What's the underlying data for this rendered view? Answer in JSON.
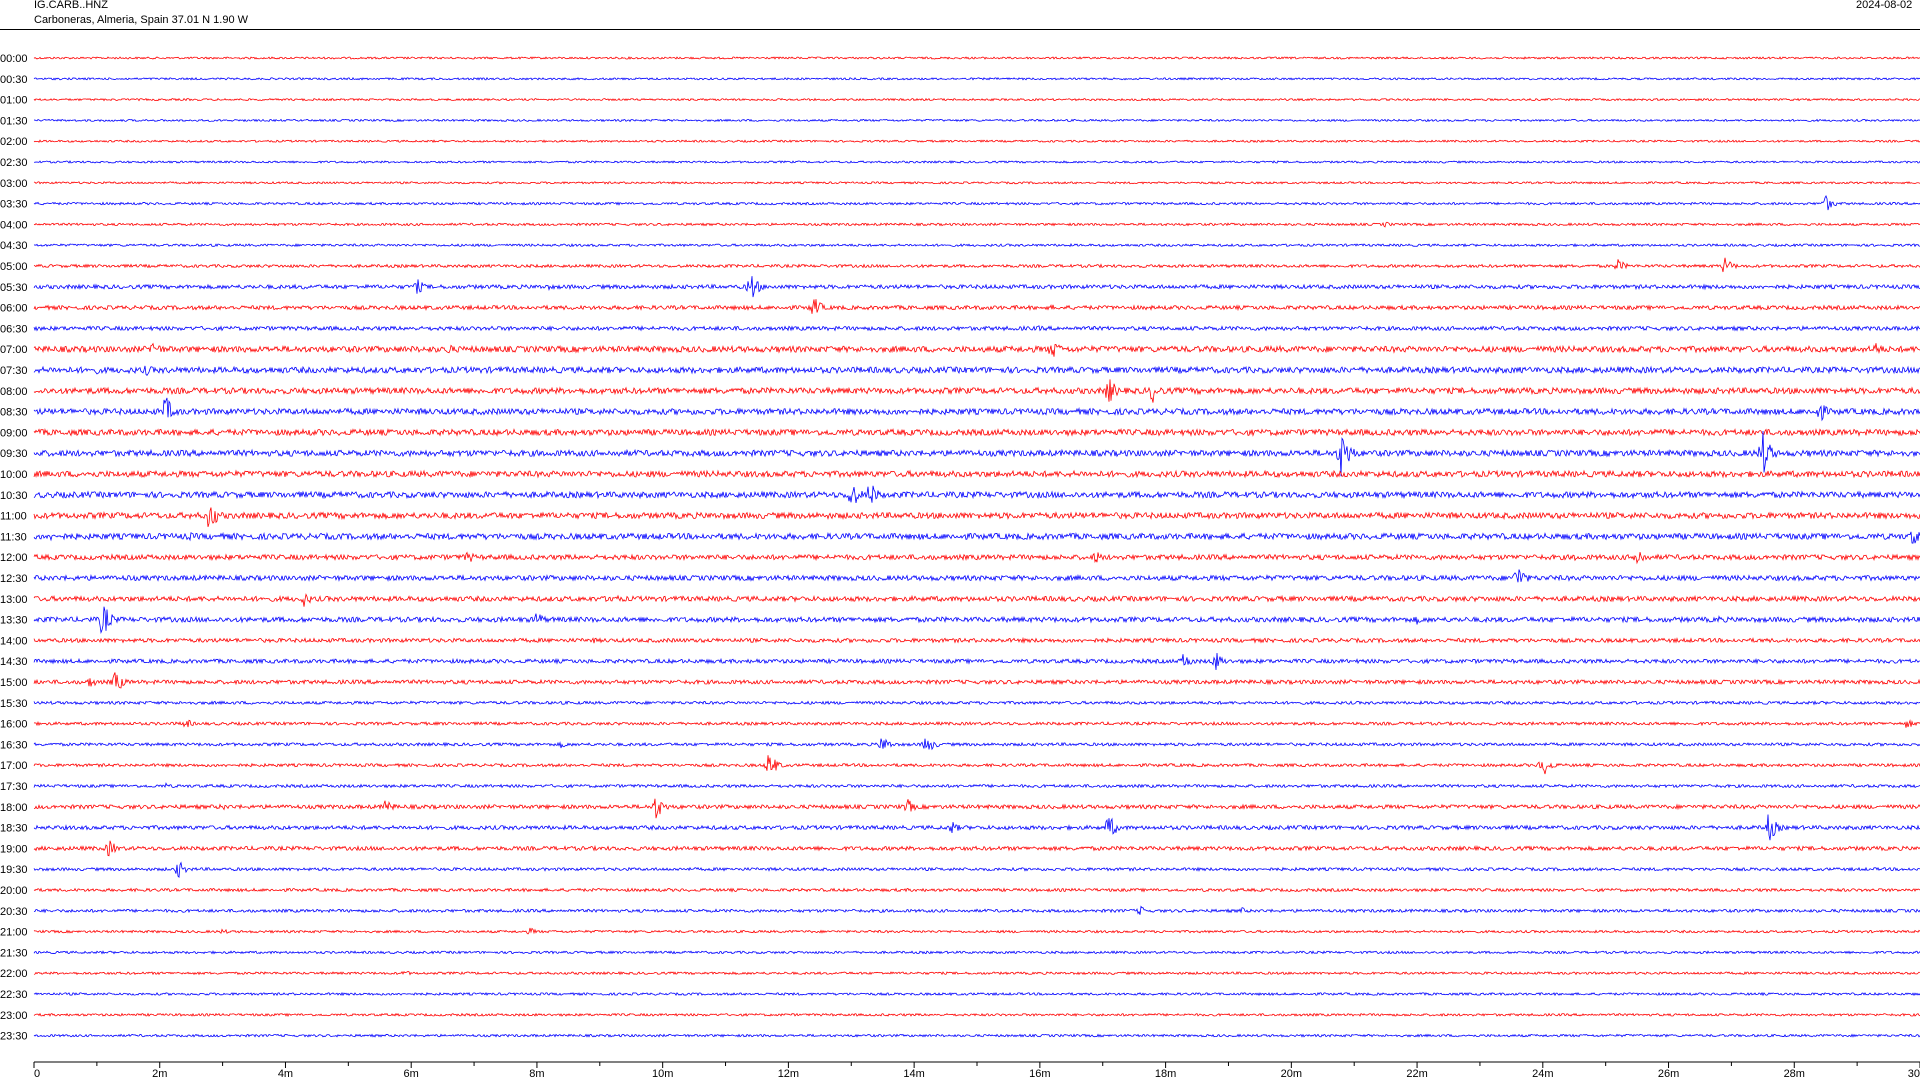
{
  "header": {
    "station": "IG.CARB..HNZ",
    "location": "Carboneras, Almeria, Spain  37.01 N 1.90 W",
    "date": "2024-08-02"
  },
  "chart_data": {
    "type": "line",
    "title": "",
    "xlabel": "",
    "ylabel": "",
    "colors": [
      "#ff0000",
      "#0000ff"
    ],
    "row_labels": [
      "00:00",
      "00:30",
      "01:00",
      "01:30",
      "02:00",
      "02:30",
      "03:00",
      "03:30",
      "04:00",
      "04:30",
      "05:00",
      "05:30",
      "06:00",
      "06:30",
      "07:00",
      "07:30",
      "08:00",
      "08:30",
      "09:00",
      "09:30",
      "10:00",
      "10:30",
      "11:00",
      "11:30",
      "12:00",
      "12:30",
      "13:00",
      "13:30",
      "14:00",
      "14:30",
      "15:00",
      "15:30",
      "16:00",
      "16:30",
      "17:00",
      "17:30",
      "18:00",
      "18:30",
      "19:00",
      "19:30",
      "20:00",
      "20:30",
      "21:00",
      "21:30",
      "22:00",
      "22:30",
      "23:00",
      "23:30"
    ],
    "xlim": [
      0,
      30
    ],
    "x_ticks": [
      "0",
      "2m",
      "4m",
      "6m",
      "8m",
      "10m",
      "12m",
      "14m",
      "16m",
      "18m",
      "20m",
      "22m",
      "24m",
      "26m",
      "28m",
      "30"
    ],
    "x_tick_values": [
      0,
      2,
      4,
      6,
      8,
      10,
      12,
      14,
      16,
      18,
      20,
      22,
      24,
      26,
      28,
      30
    ],
    "noise_level": [
      1,
      1,
      1,
      1,
      1,
      1,
      1,
      1.2,
      1.2,
      1.2,
      1.5,
      2,
      2,
      2,
      3,
      3,
      3,
      3,
      3,
      3,
      3,
      3,
      3,
      3,
      2.5,
      2.5,
      2.5,
      2.5,
      2,
      2,
      2,
      1.5,
      1.5,
      1.5,
      1.5,
      1.5,
      2,
      2,
      2,
      1.5,
      1.5,
      1.5,
      1.2,
      1.2,
      1.2,
      1.2,
      1.2,
      1.2
    ],
    "events": [
      {
        "row": 7,
        "t": 28.5,
        "amp": 9
      },
      {
        "row": 8,
        "t": 21.5,
        "amp": 3
      },
      {
        "row": 10,
        "t": 25.2,
        "amp": 7
      },
      {
        "row": 10,
        "t": 26.9,
        "amp": 9
      },
      {
        "row": 11,
        "t": 4.3,
        "amp": 3
      },
      {
        "row": 11,
        "t": 6.1,
        "amp": 8
      },
      {
        "row": 11,
        "t": 8.2,
        "amp": 3
      },
      {
        "row": 11,
        "t": 11.4,
        "amp": 15
      },
      {
        "row": 12,
        "t": 12.4,
        "amp": 12
      },
      {
        "row": 12,
        "t": 16.2,
        "amp": 3
      },
      {
        "row": 13,
        "t": 7.3,
        "amp": 3
      },
      {
        "row": 13,
        "t": 16.0,
        "amp": 3
      },
      {
        "row": 14,
        "t": 1.9,
        "amp": 10
      },
      {
        "row": 14,
        "t": 6.6,
        "amp": 6
      },
      {
        "row": 14,
        "t": 16.2,
        "amp": 11
      },
      {
        "row": 14,
        "t": 29.3,
        "amp": 8
      },
      {
        "row": 15,
        "t": 1.0,
        "amp": 4
      },
      {
        "row": 15,
        "t": 1.8,
        "amp": 6
      },
      {
        "row": 15,
        "t": 3.5,
        "amp": 4
      },
      {
        "row": 16,
        "t": 17.1,
        "amp": 14
      },
      {
        "row": 16,
        "t": 17.8,
        "amp": 12
      },
      {
        "row": 16,
        "t": 0.9,
        "amp": 4
      },
      {
        "row": 17,
        "t": 2.1,
        "amp": 16
      },
      {
        "row": 17,
        "t": 28.4,
        "amp": 12
      },
      {
        "row": 18,
        "t": 6.0,
        "amp": 3
      },
      {
        "row": 18,
        "t": 13.0,
        "amp": 3
      },
      {
        "row": 19,
        "t": 20.8,
        "amp": 26
      },
      {
        "row": 19,
        "t": 27.5,
        "amp": 24
      },
      {
        "row": 19,
        "t": 3.0,
        "amp": 3
      },
      {
        "row": 21,
        "t": 13.0,
        "amp": 16
      },
      {
        "row": 21,
        "t": 13.3,
        "amp": 14
      },
      {
        "row": 21,
        "t": 9.4,
        "amp": 4
      },
      {
        "row": 21,
        "t": 2.0,
        "amp": 3
      },
      {
        "row": 22,
        "t": 2.8,
        "amp": 16
      },
      {
        "row": 22,
        "t": 8.8,
        "amp": 3
      },
      {
        "row": 23,
        "t": 0.3,
        "amp": 5
      },
      {
        "row": 23,
        "t": 2.5,
        "amp": 4
      },
      {
        "row": 23,
        "t": 29.9,
        "amp": 10
      },
      {
        "row": 24,
        "t": 6.9,
        "amp": 7
      },
      {
        "row": 24,
        "t": 16.9,
        "amp": 7
      },
      {
        "row": 24,
        "t": 25.5,
        "amp": 11
      },
      {
        "row": 24,
        "t": 24.5,
        "amp": 4
      },
      {
        "row": 25,
        "t": 23.6,
        "amp": 14
      },
      {
        "row": 25,
        "t": 1.5,
        "amp": 4
      },
      {
        "row": 25,
        "t": 2.5,
        "amp": 4
      },
      {
        "row": 26,
        "t": 4.3,
        "amp": 8
      },
      {
        "row": 26,
        "t": 9.2,
        "amp": 7
      },
      {
        "row": 27,
        "t": 1.1,
        "amp": 18
      },
      {
        "row": 27,
        "t": 8.0,
        "amp": 9
      },
      {
        "row": 27,
        "t": 22.0,
        "amp": 5
      },
      {
        "row": 27,
        "t": 26.8,
        "amp": 4
      },
      {
        "row": 28,
        "t": 8.9,
        "amp": 3
      },
      {
        "row": 29,
        "t": 18.3,
        "amp": 9
      },
      {
        "row": 29,
        "t": 18.8,
        "amp": 10
      },
      {
        "row": 29,
        "t": 11.5,
        "amp": 3
      },
      {
        "row": 30,
        "t": 1.3,
        "amp": 12
      },
      {
        "row": 30,
        "t": 0.9,
        "amp": 6
      },
      {
        "row": 32,
        "t": 2.4,
        "amp": 6
      },
      {
        "row": 32,
        "t": 29.8,
        "amp": 5
      },
      {
        "row": 33,
        "t": 13.5,
        "amp": 9
      },
      {
        "row": 33,
        "t": 14.2,
        "amp": 10
      },
      {
        "row": 33,
        "t": 8.4,
        "amp": 4
      },
      {
        "row": 34,
        "t": 11.7,
        "amp": 13
      },
      {
        "row": 34,
        "t": 24.0,
        "amp": 12
      },
      {
        "row": 35,
        "t": 2.1,
        "amp": 3
      },
      {
        "row": 36,
        "t": 5.6,
        "amp": 8
      },
      {
        "row": 36,
        "t": 9.9,
        "amp": 13
      },
      {
        "row": 36,
        "t": 13.9,
        "amp": 8
      },
      {
        "row": 36,
        "t": 3.0,
        "amp": 4
      },
      {
        "row": 37,
        "t": 14.6,
        "amp": 7
      },
      {
        "row": 37,
        "t": 17.1,
        "amp": 13
      },
      {
        "row": 37,
        "t": 27.6,
        "amp": 15
      },
      {
        "row": 38,
        "t": 1.2,
        "amp": 9
      },
      {
        "row": 39,
        "t": 2.3,
        "amp": 9
      },
      {
        "row": 41,
        "t": 17.6,
        "amp": 5
      },
      {
        "row": 41,
        "t": 19.2,
        "amp": 4
      },
      {
        "row": 42,
        "t": 3.0,
        "amp": 3
      },
      {
        "row": 42,
        "t": 7.9,
        "amp": 4
      },
      {
        "row": 44,
        "t": 5.9,
        "amp": 3
      }
    ]
  }
}
